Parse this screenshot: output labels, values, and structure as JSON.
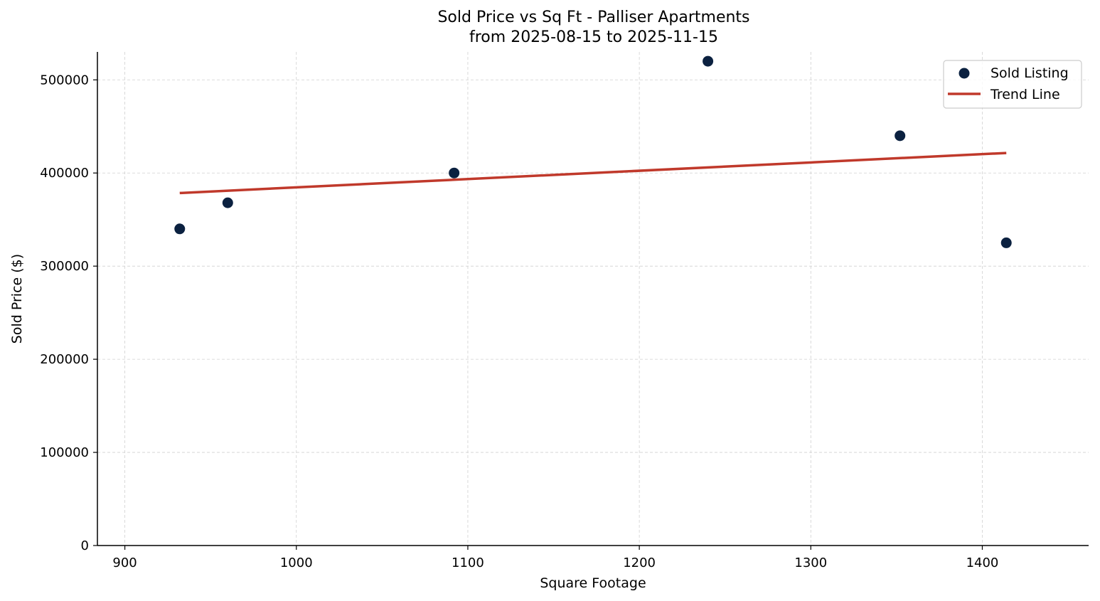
{
  "chart_data": {
    "type": "scatter",
    "title": "Sold Price vs Sq Ft - Palliser Apartments",
    "subtitle": "from 2025-08-15 to 2025-11-15",
    "xlabel": "Square Footage",
    "ylabel": "Sold Price ($)",
    "xlim": [
      884,
      1462
    ],
    "ylim": [
      0,
      530000
    ],
    "x_ticks": [
      900,
      1000,
      1100,
      1200,
      1300,
      1400
    ],
    "y_ticks": [
      0,
      100000,
      200000,
      300000,
      400000,
      500000
    ],
    "grid": true,
    "legend_position": "upper right",
    "series": [
      {
        "name": "Sold Listing",
        "kind": "scatter",
        "color": "#0b2140",
        "points": [
          {
            "x": 932,
            "y": 340000
          },
          {
            "x": 960,
            "y": 368000
          },
          {
            "x": 1092,
            "y": 400000
          },
          {
            "x": 1240,
            "y": 520000
          },
          {
            "x": 1352,
            "y": 440000
          },
          {
            "x": 1414,
            "y": 325000
          }
        ]
      },
      {
        "name": "Trend Line",
        "kind": "line",
        "color": "#c0392b",
        "points": [
          {
            "x": 932,
            "y": 378500
          },
          {
            "x": 1414,
            "y": 421500
          }
        ]
      }
    ]
  },
  "legend": {
    "items": [
      {
        "label": "Sold Listing"
      },
      {
        "label": "Trend Line"
      }
    ]
  }
}
